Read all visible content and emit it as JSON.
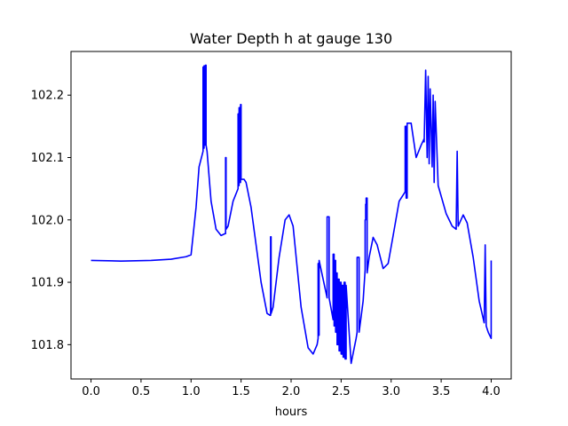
{
  "chart_data": {
    "type": "line",
    "title": "Water Depth h at gauge 130",
    "xlabel": "hours",
    "ylabel": "",
    "xlim": [
      -0.2,
      4.2
    ],
    "ylim": [
      101.745,
      102.27
    ],
    "xticks": [
      0.0,
      0.5,
      1.0,
      1.5,
      2.0,
      2.5,
      3.0,
      3.5,
      4.0
    ],
    "xtick_labels": [
      "0.0",
      "0.5",
      "1.0",
      "1.5",
      "2.0",
      "2.5",
      "3.0",
      "3.5",
      "4.0"
    ],
    "yticks": [
      101.8,
      101.9,
      102.0,
      102.1,
      102.2
    ],
    "ytick_labels": [
      "101.8",
      "101.9",
      "102.0",
      "102.1",
      "102.2"
    ],
    "grid": false,
    "series": [
      {
        "color": "#0000ff",
        "x": [
          0.0,
          0.3,
          0.6,
          0.8,
          0.95,
          1.0,
          1.05,
          1.08,
          1.12,
          1.12,
          1.125,
          1.125,
          1.13,
          1.13,
          1.14,
          1.14,
          1.145,
          1.145,
          1.15,
          1.15,
          1.16,
          1.2,
          1.25,
          1.3,
          1.34,
          1.345,
          1.345,
          1.35,
          1.35,
          1.37,
          1.42,
          1.47,
          1.47,
          1.475,
          1.475,
          1.48,
          1.48,
          1.49,
          1.49,
          1.495,
          1.495,
          1.5,
          1.5,
          1.53,
          1.55,
          1.6,
          1.7,
          1.76,
          1.79,
          1.795,
          1.795,
          1.8,
          1.8,
          1.82,
          1.88,
          1.94,
          1.98,
          2.02,
          2.1,
          2.17,
          2.22,
          2.26,
          2.27,
          2.27,
          2.275,
          2.275,
          2.28,
          2.28,
          2.36,
          2.36,
          2.38,
          2.38,
          2.42,
          2.42,
          2.43,
          2.43,
          2.44,
          2.44,
          2.445,
          2.445,
          2.455,
          2.455,
          2.46,
          2.46,
          2.47,
          2.47,
          2.48,
          2.48,
          2.49,
          2.49,
          2.5,
          2.5,
          2.51,
          2.51,
          2.52,
          2.52,
          2.53,
          2.53,
          2.54,
          2.54,
          2.55,
          2.55,
          2.6,
          2.65,
          2.66,
          2.66,
          2.68,
          2.68,
          2.72,
          2.74,
          2.74,
          2.745,
          2.745,
          2.75,
          2.75,
          2.76,
          2.76,
          2.78,
          2.82,
          2.86,
          2.92,
          2.97,
          3.02,
          3.08,
          3.14,
          3.14,
          3.15,
          3.15,
          3.16,
          3.16,
          3.2,
          3.25,
          3.3,
          3.33,
          3.33,
          3.345,
          3.345,
          3.36,
          3.36,
          3.37,
          3.37,
          3.38,
          3.38,
          3.39,
          3.39,
          3.41,
          3.41,
          3.42,
          3.42,
          3.43,
          3.43,
          3.44,
          3.44,
          3.47,
          3.55,
          3.61,
          3.65,
          3.66,
          3.66,
          3.67,
          3.67,
          3.72,
          3.76,
          3.82,
          3.88,
          3.93,
          3.94,
          3.94,
          3.95,
          3.95,
          3.97,
          4.0,
          4.0
        ],
        "y": [
          101.935,
          101.934,
          101.935,
          101.937,
          101.941,
          101.944,
          102.02,
          102.085,
          102.11,
          102.245,
          102.245,
          102.115,
          102.115,
          102.247,
          102.247,
          102.12,
          102.12,
          102.248,
          102.248,
          102.12,
          102.11,
          102.03,
          101.985,
          101.975,
          101.978,
          101.978,
          102.1,
          102.1,
          101.985,
          101.99,
          102.03,
          102.05,
          102.17,
          102.17,
          102.055,
          102.055,
          102.18,
          102.18,
          102.06,
          102.06,
          102.185,
          102.185,
          102.065,
          102.065,
          102.06,
          102.02,
          101.9,
          101.85,
          101.847,
          101.847,
          101.973,
          101.973,
          101.85,
          101.86,
          101.94,
          102.0,
          102.008,
          101.99,
          101.86,
          101.795,
          101.785,
          101.8,
          101.81,
          101.93,
          101.93,
          101.815,
          101.815,
          101.935,
          101.875,
          102.005,
          102.005,
          101.875,
          101.84,
          101.945,
          101.945,
          101.83,
          101.83,
          101.935,
          101.935,
          101.82,
          101.82,
          101.915,
          101.915,
          101.8,
          101.8,
          101.905,
          101.905,
          101.79,
          101.79,
          101.9,
          101.9,
          101.785,
          101.785,
          101.895,
          101.895,
          101.78,
          101.78,
          101.9,
          101.9,
          101.777,
          101.777,
          101.895,
          101.77,
          101.81,
          101.82,
          101.94,
          101.94,
          101.82,
          101.87,
          101.92,
          102.0,
          102.0,
          102.025,
          102.025,
          102.035,
          102.035,
          101.915,
          101.94,
          101.972,
          101.96,
          101.922,
          101.93,
          101.975,
          102.03,
          102.045,
          102.15,
          102.15,
          102.035,
          102.035,
          102.155,
          102.155,
          102.1,
          102.12,
          102.13,
          102.125,
          102.24,
          102.24,
          102.1,
          102.1,
          102.23,
          102.23,
          102.09,
          102.09,
          102.21,
          102.21,
          102.085,
          102.085,
          102.2,
          102.2,
          102.06,
          102.06,
          102.19,
          102.19,
          102.055,
          102.01,
          101.99,
          101.985,
          102.11,
          102.11,
          101.99,
          101.99,
          102.008,
          101.995,
          101.94,
          101.87,
          101.835,
          101.96,
          101.96,
          101.83,
          101.83,
          101.82,
          101.81,
          101.935
        ]
      }
    ]
  }
}
